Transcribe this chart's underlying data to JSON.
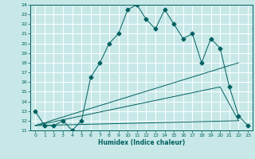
{
  "xlabel": "Humidex (Indice chaleur)",
  "xlim": [
    -0.5,
    23.5
  ],
  "ylim": [
    11,
    24
  ],
  "xticks": [
    0,
    1,
    2,
    3,
    4,
    5,
    6,
    7,
    8,
    9,
    10,
    11,
    12,
    13,
    14,
    15,
    16,
    17,
    18,
    19,
    20,
    21,
    22,
    23
  ],
  "yticks": [
    11,
    12,
    13,
    14,
    15,
    16,
    17,
    18,
    19,
    20,
    21,
    22,
    23,
    24
  ],
  "background_color": "#c8e8e8",
  "grid_color": "#ffffff",
  "line_color": "#006060",
  "line1_x": [
    0,
    1,
    2,
    3,
    4,
    5,
    6,
    7,
    8,
    9,
    10,
    11,
    12,
    13,
    14,
    15,
    16,
    17,
    18,
    19,
    20,
    21,
    22,
    23
  ],
  "line1_y": [
    13,
    11.5,
    11.5,
    12,
    11,
    12,
    16.5,
    18,
    20,
    21,
    23.5,
    24,
    22.5,
    21.5,
    23.5,
    22,
    20.5,
    21,
    18,
    20.5,
    19.5,
    15.5,
    12.5,
    11.5
  ],
  "line2_x": [
    0,
    22
  ],
  "line2_y": [
    11.5,
    18
  ],
  "line3_x": [
    0,
    20,
    22
  ],
  "line3_y": [
    11.5,
    15.5,
    12.0
  ],
  "line4_x": [
    0,
    22
  ],
  "line4_y": [
    11.5,
    12.0
  ]
}
